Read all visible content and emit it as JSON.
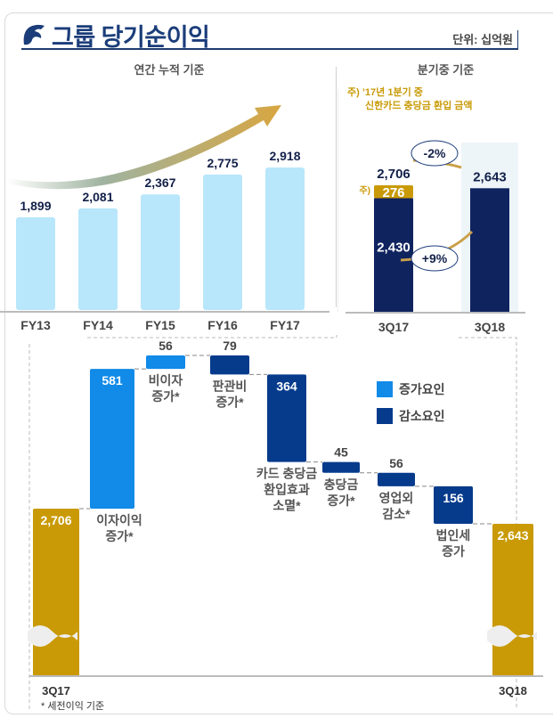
{
  "header": {
    "title": "그룹 당기순이익",
    "unit": "단위: 십억원"
  },
  "colors": {
    "navy": "#0f235f",
    "dark_blue": "#063b8c",
    "light_blue": "#b8e6fb",
    "bright_blue": "#118ae8",
    "gold": "#c99a06",
    "title_blue": "#1b3d7a"
  },
  "footnote": "* 세전이익 기준",
  "chart_data": [
    {
      "type": "bar",
      "title": "연간 누적 기준",
      "categories": [
        "FY13",
        "FY14",
        "FY15",
        "FY16",
        "FY17"
      ],
      "values": [
        1899,
        2081,
        2367,
        2775,
        2918
      ],
      "labels": [
        "1,899",
        "2,081",
        "2,367",
        "2,775",
        "2,918"
      ],
      "xlabel": "",
      "ylabel": "",
      "annotation": "upward-trend-arrow"
    },
    {
      "type": "bar",
      "title": "분기중 기준",
      "note_prefix": "주)",
      "note_line1": "’17년 1분기 중",
      "note_line2": "신한카드 충당금 환입 금액",
      "categories": [
        "3Q17",
        "3Q18"
      ],
      "series": [
        {
          "name": "base",
          "values": [
            2430,
            2643
          ],
          "labels": [
            "2,430",
            ""
          ]
        },
        {
          "name": "신한카드 충당금 환입 금액",
          "values": [
            276,
            0
          ],
          "labels": [
            "276",
            ""
          ]
        }
      ],
      "totals": [
        "2,706",
        "2,643"
      ],
      "stack_note_marker": "주)",
      "changes": [
        {
          "label": "-2%",
          "from": "total-3Q17",
          "to": "3Q18"
        },
        {
          "label": "+9%",
          "from": "base-3Q17",
          "to": "3Q18"
        }
      ]
    },
    {
      "type": "bar",
      "subtype": "waterfall",
      "legend": [
        {
          "name": "증가요인",
          "color": "#118ae8"
        },
        {
          "name": "감소요인",
          "color": "#063b8c"
        }
      ],
      "legend_position": "top-right",
      "steps": [
        {
          "label": "3Q17",
          "kind": "total",
          "value": 2706,
          "text": "2,706"
        },
        {
          "label": "이자이익\n증가*",
          "kind": "increase",
          "value": 581,
          "text": "581"
        },
        {
          "label": "비이자\n증가*",
          "kind": "increase",
          "value": 56,
          "text": "56"
        },
        {
          "label": "판관비\n증가*",
          "kind": "decrease",
          "value": 79,
          "text": "79"
        },
        {
          "label": "카드 충당금\n환입효과\n소멸*",
          "kind": "decrease",
          "value": 364,
          "text": "364"
        },
        {
          "label": "충당금\n증가*",
          "kind": "decrease",
          "value": 45,
          "text": "45"
        },
        {
          "label": "영업외\n감소*",
          "kind": "decrease",
          "value": 56,
          "text": "56"
        },
        {
          "label": "법인세\n증가",
          "kind": "decrease",
          "value": 156,
          "text": "156"
        },
        {
          "label": "3Q18",
          "kind": "total",
          "value": 2643,
          "text": "2,643"
        }
      ],
      "axis_break": true
    }
  ]
}
